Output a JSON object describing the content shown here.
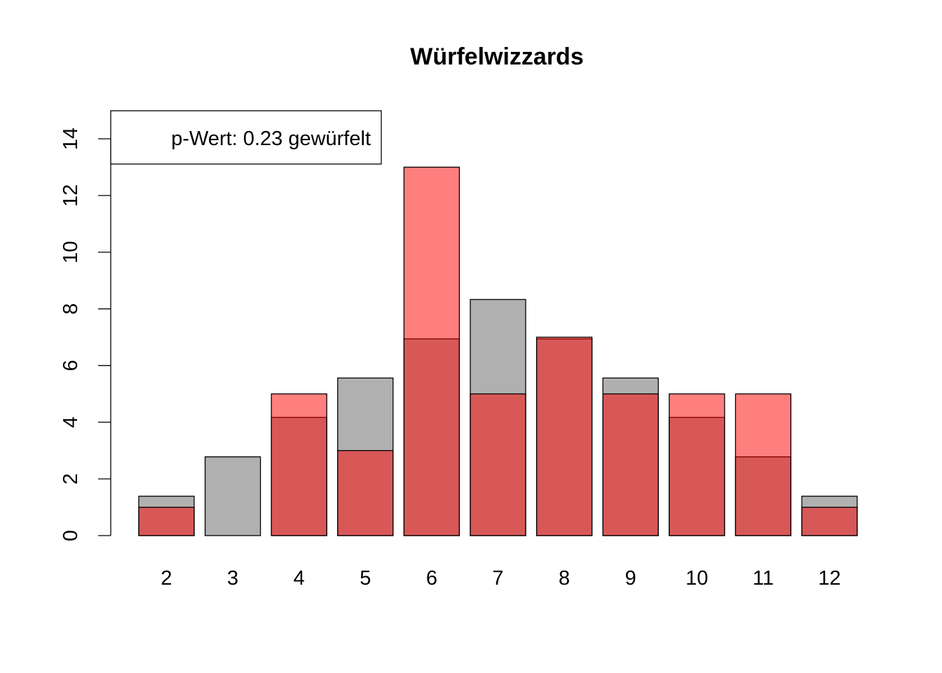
{
  "chart_data": {
    "type": "bar",
    "title": "Würfelwizzards",
    "xlabel": "",
    "ylabel": "",
    "categories": [
      "2",
      "3",
      "4",
      "5",
      "6",
      "7",
      "8",
      "9",
      "10",
      "11",
      "12"
    ],
    "series": [
      {
        "values": [
          1.39,
          2.78,
          4.17,
          5.56,
          6.94,
          8.33,
          6.94,
          5.56,
          4.17,
          2.78,
          1.39
        ],
        "color": "#b0b0b0"
      },
      {
        "values": [
          1,
          0,
          5,
          3,
          13,
          5,
          7,
          5,
          5,
          5,
          1
        ],
        "color": "#ff0000",
        "opacity": 0.5
      }
    ],
    "overlap_color": "#d8585b",
    "ylim": [
      0,
      14
    ],
    "yticks": [
      0,
      2,
      4,
      6,
      8,
      10,
      12,
      14
    ],
    "grid": false,
    "legend": {
      "position": "top-left",
      "text": "p-Wert: 0.23 gewürfelt"
    }
  }
}
